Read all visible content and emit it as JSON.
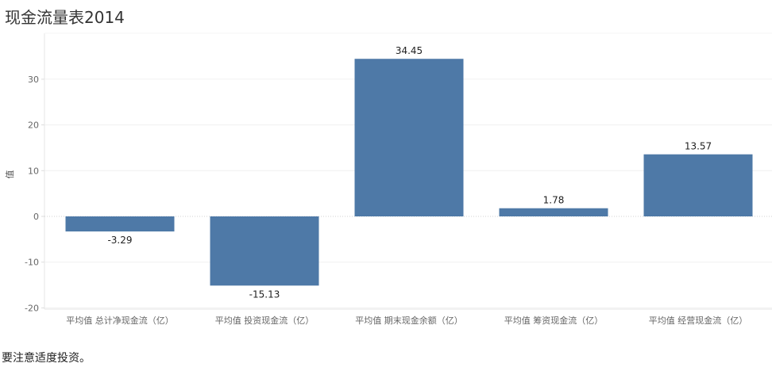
{
  "page": {
    "footnote": "要注意适度投资。"
  },
  "colors": {
    "bar": "#4e79a7",
    "grid": "#f0f0f0",
    "zero_line": "#d0d0d0"
  },
  "chart_data": {
    "type": "bar",
    "title": "现金流量表2014",
    "ylabel": "值",
    "xlabel": "",
    "categories": [
      "平均值 总计净现金流（亿）",
      "平均值 投资现金流（亿）",
      "平均值 期末现金余额（亿）",
      "平均值 筹资现金流（亿）",
      "平均值 经营现金流（亿）"
    ],
    "values": [
      -3.29,
      -15.13,
      34.45,
      1.78,
      13.57
    ],
    "value_labels": [
      "-3.29",
      "-15.13",
      "34.45",
      "1.78",
      "13.57"
    ],
    "yticks": [
      -20,
      -10,
      0,
      10,
      20,
      30
    ],
    "ylim": [
      -20,
      38
    ],
    "grid": true,
    "legend": "none"
  }
}
